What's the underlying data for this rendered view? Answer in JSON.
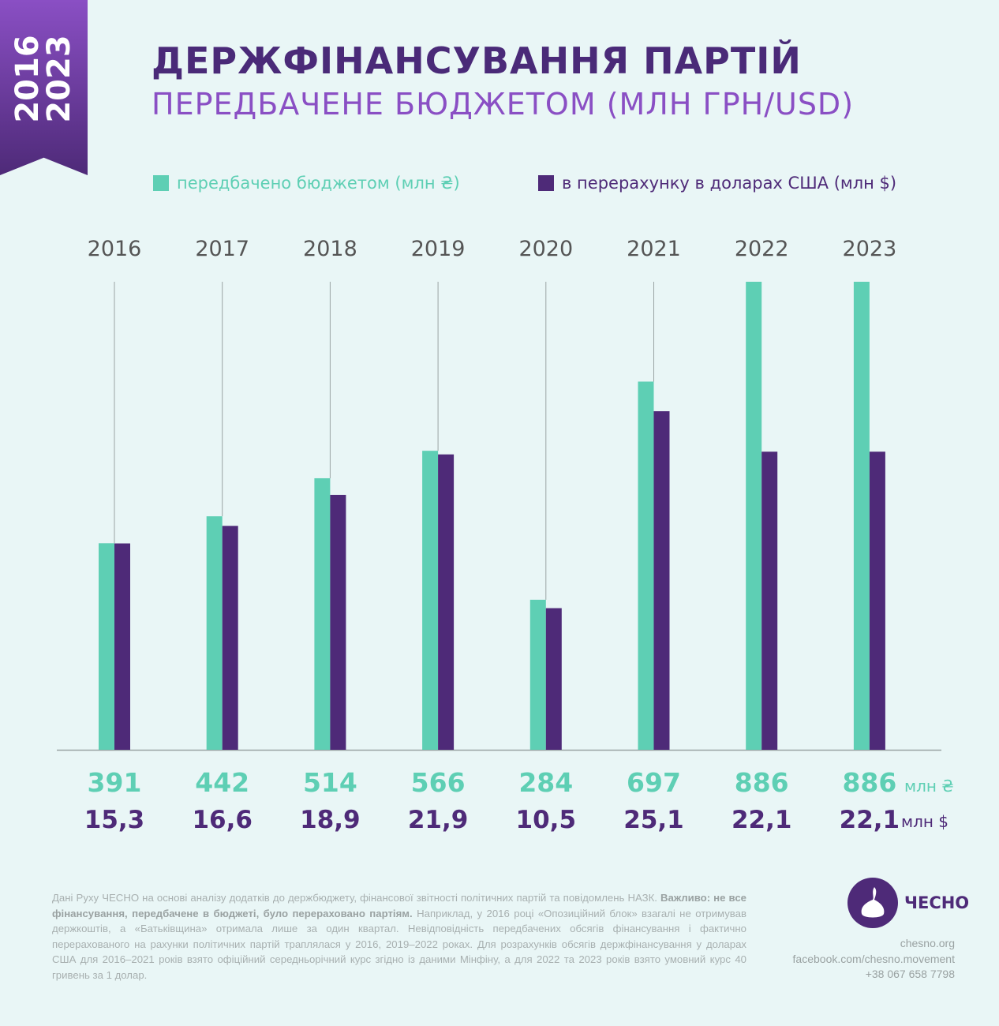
{
  "ribbon": "2016\n2023",
  "ribbon_lines": [
    "2016",
    "2023"
  ],
  "title": "ДЕРЖФІНАНСУВАННЯ ПАРТІЙ",
  "subtitle": "ПЕРЕДБАЧЕНЕ БЮДЖЕТОМ (МЛН ГРН/USD)",
  "colors": {
    "uah": "#5ecfb4",
    "usd": "#4e2a78",
    "title": "#4a2a78",
    "subtitle": "#8a4fc4"
  },
  "chart_data": {
    "type": "bar",
    "categories": [
      "2016",
      "2017",
      "2018",
      "2019",
      "2020",
      "2021",
      "2022",
      "2023"
    ],
    "series": [
      {
        "name": "передбачено бюджетом (млн ₴)",
        "values": [
          391,
          442,
          514,
          566,
          284,
          697,
          886,
          886
        ],
        "labels": [
          "391",
          "442",
          "514",
          "566",
          "284",
          "697",
          "886",
          "886"
        ],
        "unit": "млн ₴"
      },
      {
        "name": "в перерахунку в доларах США (млн $)",
        "values": [
          15.3,
          16.6,
          18.9,
          21.9,
          10.5,
          25.1,
          22.1,
          22.1
        ],
        "labels": [
          "15,3",
          "16,6",
          "18,9",
          "21,9",
          "10,5",
          "25,1",
          "22,1",
          "22,1"
        ],
        "unit": "млн $"
      }
    ],
    "ylim_uah": [
      0,
      886
    ],
    "ylim_usd": [
      0,
      34.7
    ],
    "legend": "top",
    "grid": false
  },
  "footer": {
    "line1": "Дані Руху ЧЕСНО на основі аналізу додатків до держбюджету, фінансової звітності політичних партій та повідомлень НАЗК.",
    "bold": "Важливо: не все фінансування, передбачене в бюджеті, було перераховано партіям.",
    "rest": " Наприклад, у 2016 році «Опозиційний блок» взагалі не отримував держкоштів, а «Батьківщина» отримала лише за один квартал. Невідповідність передбачених обсягів фінансування і фактично перерахованого на рахунки політичних партій траплялася у 2016, 2019–2022 роках. Для розрахунків обсягів держфінансування у доларах США для 2016–2021 років взято офіційний середньорічний курс згідно із даними Мінфіну, а для 2022 та 2023 років взято умовний курс 40 гривень за 1 долар."
  },
  "logo": "ЧЕСНО",
  "contact": [
    "chesno.org",
    "facebook.com/chesno.movement",
    "+38 067 658 7798"
  ]
}
